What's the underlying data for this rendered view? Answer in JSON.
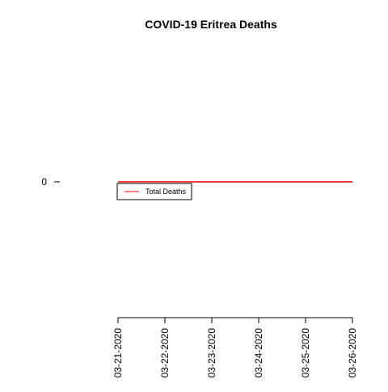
{
  "chart_data": {
    "type": "line",
    "title": "COVID-19 Eritrea Deaths",
    "xlabel": "",
    "ylabel": "",
    "x": [
      "03-21-2020",
      "03-22-2020",
      "03-23-2020",
      "03-24-2020",
      "03-25-2020",
      "03-26-2020"
    ],
    "series": [
      {
        "name": "Total Deaths",
        "values": [
          0,
          0,
          0,
          0,
          0,
          0
        ],
        "color": "#ff0000"
      }
    ],
    "y_ticks": [
      "0"
    ],
    "ylim": [
      -1,
      1
    ],
    "grid": false,
    "legend_position": "top-left"
  }
}
